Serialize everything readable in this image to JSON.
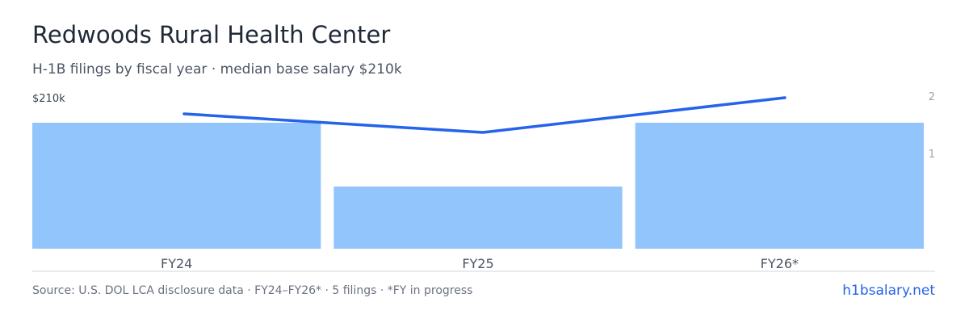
{
  "header": {
    "title": "Redwoods Rural Health Center",
    "subtitle": "H-1B filings by fiscal year · median base salary $210k"
  },
  "footer": {
    "source": "Source: U.S. DOL LCA disclosure data · FY24–FY26* · 5 filings · *FY in progress",
    "brand": "h1bsalary.net"
  },
  "colors": {
    "bar": "#93c5fd",
    "line": "#2563eb",
    "axis": "#d1d5db",
    "tick": "#9ca3af",
    "category": "#4b5563",
    "salary_label": "#374151"
  },
  "chart_data": {
    "type": "bar",
    "categories": [
      "FY24",
      "FY25",
      "FY26*"
    ],
    "series": [
      {
        "type": "bar",
        "axis": "right",
        "values": [
          2,
          1,
          2
        ]
      },
      {
        "type": "line",
        "axis": "left",
        "values": [
          205,
          199,
          210
        ]
      }
    ],
    "y_right": {
      "ticks": [
        "1",
        "2"
      ],
      "ylim": [
        0,
        2
      ]
    },
    "y_left": {
      "tick_label": "$210k",
      "ylim": [
        168,
        210
      ]
    },
    "bar_value_scale_max": 2,
    "grid": false
  }
}
